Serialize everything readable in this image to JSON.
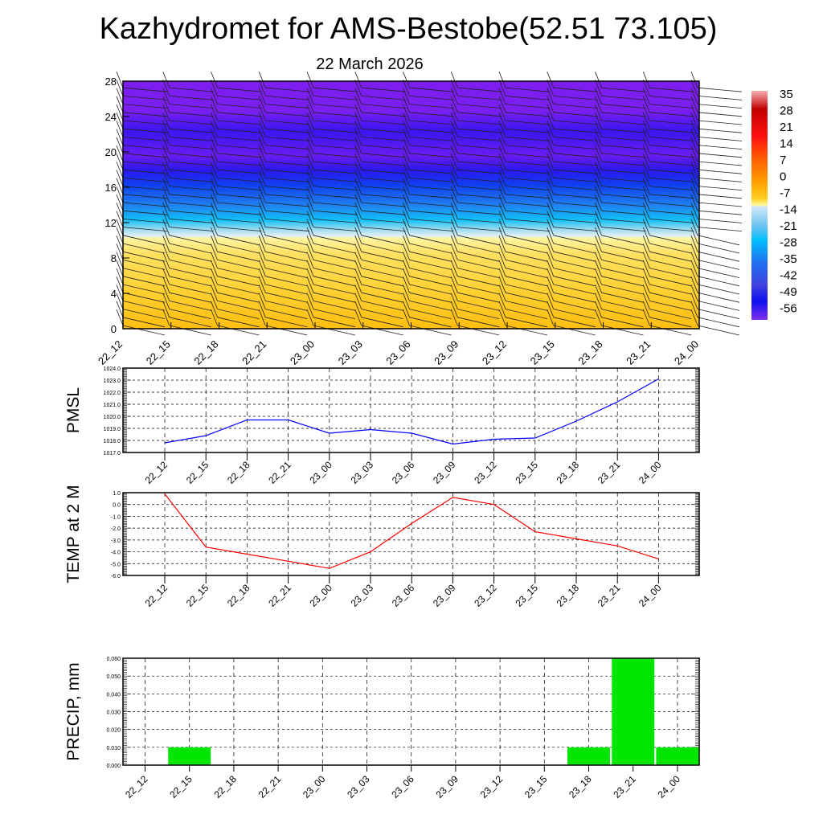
{
  "title": "Kazhydromet for AMS-Bestobe(52.51 73.105)",
  "subtitle": "22 March 2026",
  "chart_data": [
    {
      "type": "heatmap",
      "name": "vertical temperature cross-section with wind barbs",
      "x_ticks": [
        "22_12",
        "22_15",
        "22_18",
        "22_21",
        "23_00",
        "23_03",
        "23_06",
        "23_09",
        "23_12",
        "23_15",
        "23_18",
        "23_21",
        "24_00"
      ],
      "y_ticks": [
        "0",
        "4",
        "8",
        "12",
        "16",
        "20",
        "24",
        "28"
      ],
      "ylim": [
        0,
        28
      ],
      "colorbar_labels": [
        "35",
        "28",
        "21",
        "14",
        "7",
        "0",
        "-7",
        "-14",
        "-21",
        "-28",
        "-35",
        "-42",
        "-49",
        "-56"
      ],
      "colorbar_range": [
        -60,
        38
      ]
    },
    {
      "type": "line",
      "ylabel": "PMSL",
      "categories": [
        "22_12",
        "22_15",
        "22_18",
        "22_21",
        "23_00",
        "23_03",
        "23_06",
        "23_09",
        "23_12",
        "23_15",
        "23_18",
        "23_21",
        "24_00"
      ],
      "values": [
        1017.8,
        1018.4,
        1019.7,
        1019.7,
        1018.6,
        1018.9,
        1018.6,
        1017.7,
        1018.1,
        1018.2,
        1019.6,
        1021.2,
        1023.1
      ],
      "ylim": [
        1017.0,
        1024.0
      ],
      "y_ticks": [
        "1024.0",
        "1023.0",
        "1022.0",
        "1021.0",
        "1020.0",
        "1019.0",
        "1018.0",
        "1017.0"
      ],
      "color": "#0000ff"
    },
    {
      "type": "line",
      "ylabel": "TEMP at 2 M",
      "categories": [
        "22_12",
        "22_15",
        "22_18",
        "22_21",
        "23_00",
        "23_03",
        "23_06",
        "23_09",
        "23_12",
        "23_15",
        "23_18",
        "23_21",
        "24_00"
      ],
      "values": [
        0.9,
        -3.6,
        -4.2,
        -4.8,
        -5.4,
        -4.0,
        -1.6,
        0.6,
        0.0,
        -2.3,
        -2.9,
        -3.5,
        -4.6
      ],
      "ylim": [
        -6.0,
        1.0
      ],
      "y_ticks": [
        "1.0",
        "0.0",
        "-1.0",
        "-2.0",
        "-3.0",
        "-4.0",
        "-5.0",
        "-6.0"
      ],
      "color": "#ff0000"
    },
    {
      "type": "bar",
      "ylabel": "PRECIP, mm",
      "categories": [
        "22_12",
        "22_15",
        "22_18",
        "22_21",
        "23_00",
        "23_03",
        "23_06",
        "23_09",
        "23_12",
        "23_15",
        "23_18",
        "23_21",
        "24_00"
      ],
      "values": [
        0,
        0.01,
        0,
        0,
        0,
        0,
        0,
        0,
        0,
        0,
        0.01,
        0.06,
        0.01
      ],
      "ylim": [
        0,
        0.06
      ],
      "y_ticks": [
        "0.060",
        "0.050",
        "0.040",
        "0.030",
        "0.020",
        "0.010",
        "0.000"
      ],
      "color": "#00e600"
    }
  ]
}
